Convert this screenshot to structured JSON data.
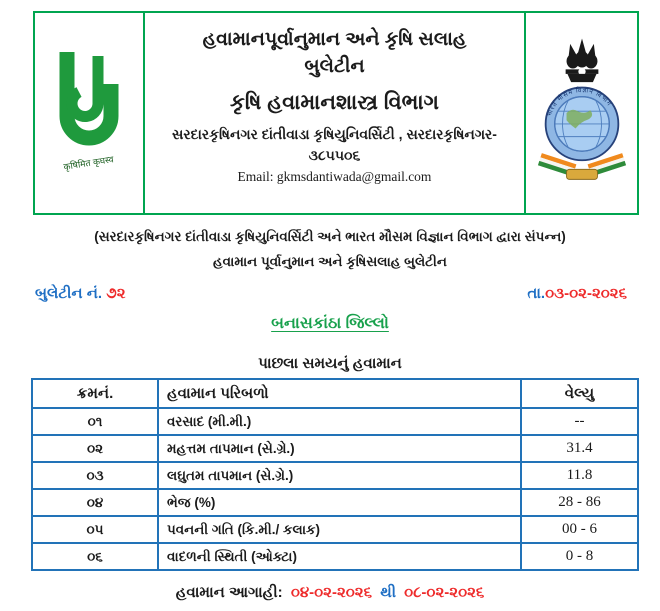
{
  "colors": {
    "header_border_green": "#00a550",
    "table_border_blue": "#2273b8",
    "label_blue": "#1f6fc4",
    "value_red": "#ee2b2b",
    "district_green": "#18a14c",
    "logo_green": "#1f9a3d"
  },
  "header": {
    "title_line1": "હવામાનપૂર્વાનુમાન અને કૃષિ સલાહ",
    "title_line2": "બુલેટીન",
    "department": "કૃષિ હવામાનશાસ્ત્ર વિભાગ",
    "address_line1": "સરદારકૃષિનગર દાંતીવાડા કૃષિયુનિવર્સિટી , સરદારકૃષિનગર-",
    "address_line2": "૩૮૫૫૦૬",
    "email": "Email: gkmsdantiwada@gmail.com",
    "university_logo_motto": "कृषिमित कृघस्व",
    "imd_ring_text": "भारत मौसम विज्ञान विभाग"
  },
  "subheader": {
    "line1": "(સરદારકૃષિનગર દાંતીવાડા કૃષિયુનિવર્સિટી અને ભારત મૌસમ વિજ્ઞાન વિભાગ દ્વારા સંપન્ન)",
    "line2": "હવામાન પૂર્વાનુમાન અને કૃષિસલાહ બુલેટીન"
  },
  "bulletin": {
    "number_label": "બુલેટીન નં.",
    "number_value": "૭૨",
    "date_label": "તા.",
    "date_value": "૦૩-૦૨-૨૦૨૬"
  },
  "district_heading": "બનાસકાંઠા જિલ્લો",
  "section_title": "પાછલા સમયનું હવામાન",
  "table": {
    "headers": [
      "ક્રમનં.",
      "હવામાન પરિબળો",
      "વેલ્યુ"
    ],
    "rows": [
      [
        "૦૧",
        "વરસાદ (મી.મી.)",
        "--"
      ],
      [
        "૦૨",
        "મહત્તમ તાપમાન (સે.ગ્રે.)",
        "31.4"
      ],
      [
        "૦૩",
        "લઘુતમ તાપમાન (સે.ગ્રે.)",
        "11.8"
      ],
      [
        "૦૪",
        "ભેજ (%)",
        "28 - 86"
      ],
      [
        "૦૫",
        "પવનની ગતિ (કિ.મી./ કલાક)",
        "00 - 6"
      ],
      [
        "૦૬",
        "વાદળની સ્થિતી (ઓક્ટા)",
        "0 - 8"
      ]
    ]
  },
  "footer": {
    "label": "હવામાન આગાહી:",
    "date_from": "૦૪-૦૨-૨૦૨૬",
    "separator": "થી",
    "date_to": "૦૮-૦૨-૨૦૨૬"
  }
}
